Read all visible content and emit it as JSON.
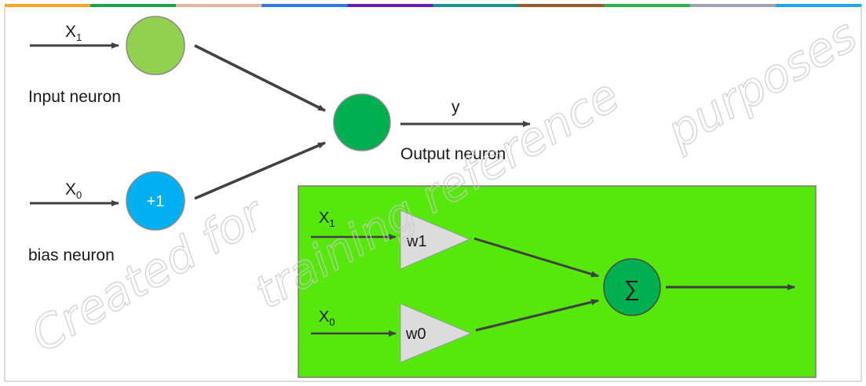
{
  "colors": {
    "input_neuron": "#92d050",
    "bias_neuron": "#00b0f0",
    "output_neuron": "#00b050",
    "sum_node": "#00b050",
    "panel_bg": "#55e80a",
    "triangle_fill": "#dcdcdc",
    "arrow": "#404040",
    "bias_text": "#ffffff",
    "top_stripe": [
      "#f5a623",
      "#1ca34a",
      "#e8b59c",
      "#2c7be5",
      "#6a1fb0",
      "#1d8f8f",
      "#9a5b2a",
      "#2fb24a",
      "#9aa5b1",
      "#1ea7e8"
    ]
  },
  "icons": {
    "sum_symbol": "summation-icon"
  },
  "top": {
    "x1_label": "X",
    "x1_sub": "1",
    "x0_label": "X",
    "x0_sub": "0",
    "input_neuron_label": "Input neuron",
    "bias_neuron_label": "bias neuron",
    "bias_value": "+1",
    "output_label": "y",
    "output_neuron_label": "Output neuron"
  },
  "panel": {
    "x1_label": "X",
    "x1_sub": "1",
    "x0_label": "X",
    "x0_sub": "0",
    "w1_label": "w1",
    "w0_label": "w0",
    "sum_symbol": "∑"
  },
  "watermark": {
    "line1": "Created for",
    "line2": "training reference",
    "line3": "purposes"
  }
}
